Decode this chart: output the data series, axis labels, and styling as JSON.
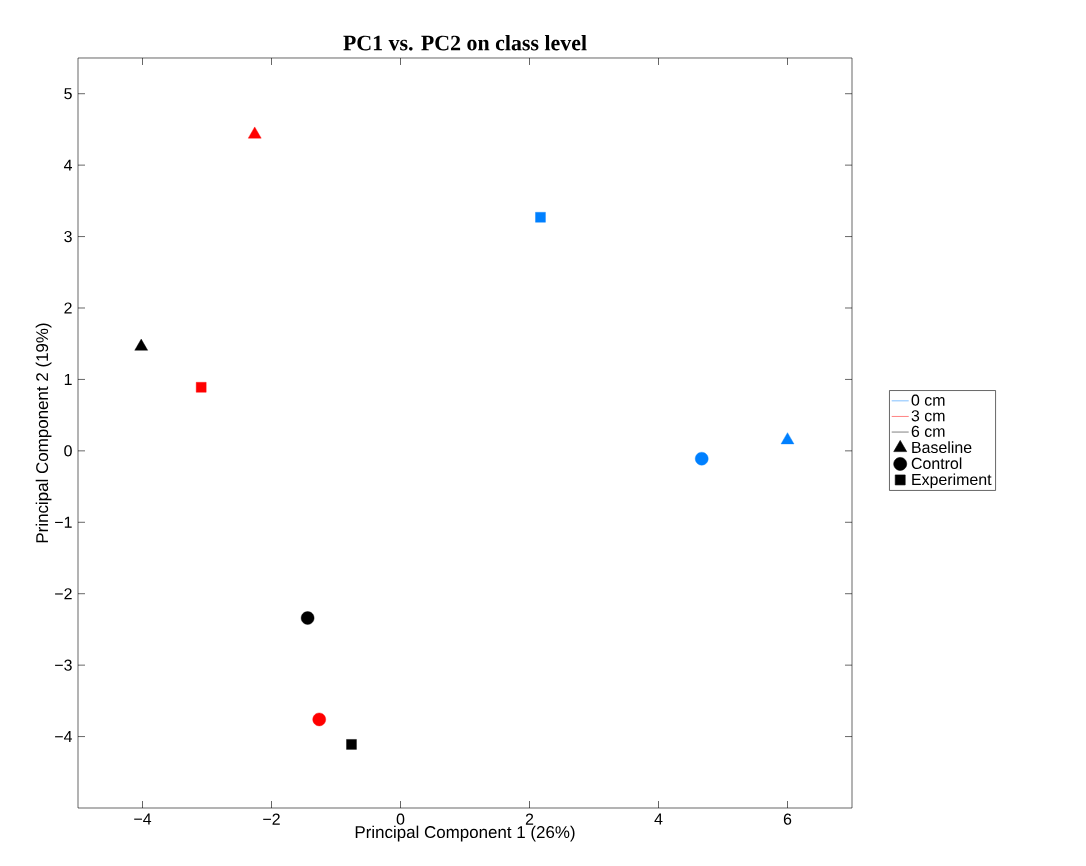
{
  "chart_data": {
    "type": "scatter",
    "title": "PC1 vs. PC2 on class level",
    "xlabel": "Principal Component 1 (26%)",
    "ylabel": "Principal Component 2 (19%)",
    "xlim": [
      -5,
      7
    ],
    "ylim": [
      -5,
      5.5
    ],
    "xticks": [
      {
        "value": -4,
        "label": "−4"
      },
      {
        "value": -2,
        "label": "−2"
      },
      0,
      2,
      4,
      6
    ],
    "yticks": [
      {
        "value": -4,
        "label": "−4"
      },
      {
        "value": -3,
        "label": "−3"
      },
      {
        "value": -2,
        "label": "−2"
      },
      {
        "value": -1,
        "label": "−1"
      },
      0,
      1,
      2,
      3,
      4,
      5
    ],
    "legend": "right",
    "grid": false,
    "series": [
      {
        "name": "0 cm",
        "type": "line",
        "color": "#0080ff"
      },
      {
        "name": "3 cm",
        "type": "line",
        "color": "#ff0000"
      },
      {
        "name": "6 cm",
        "type": "line",
        "color": "#000000"
      },
      {
        "name": "Baseline",
        "type": "scatter",
        "marker": "triangle",
        "color": "#000000",
        "colors": [
          "#0080ff",
          "#ff0000",
          "#000000"
        ],
        "x": [
          6.0,
          -2.26,
          -4.02
        ],
        "values": [
          0.15,
          4.43,
          1.46
        ]
      },
      {
        "name": "Control",
        "type": "scatter",
        "marker": "circle",
        "color": "#000000",
        "colors": [
          "#0080ff",
          "#ff0000",
          "#000000"
        ],
        "x": [
          4.67,
          -1.26,
          -1.44
        ],
        "values": [
          -0.11,
          -3.76,
          -2.34
        ]
      },
      {
        "name": "Experiment",
        "type": "scatter",
        "marker": "square",
        "color": "#000000",
        "colors": [
          "#0080ff",
          "#ff0000",
          "#000000"
        ],
        "x": [
          2.17,
          -3.09,
          -0.76
        ],
        "values": [
          3.27,
          0.89,
          -4.11
        ]
      }
    ]
  }
}
